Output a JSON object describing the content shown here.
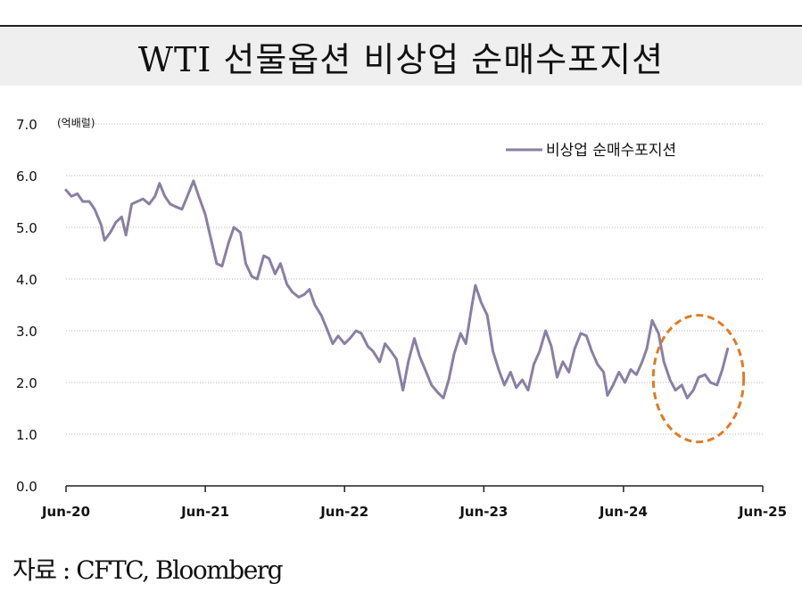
{
  "header": {
    "title": "WTI 선물옵션 비상업 순매수포지션"
  },
  "source": "자료 : CFTC, Bloomberg",
  "colors": {
    "series": "#8a7fa3",
    "highlight": "#e07b22",
    "grid": "#b5b5b5"
  },
  "chart_data": {
    "type": "line",
    "title": "WTI 선물옵션 비상업 순매수포지션",
    "ylabel": "",
    "unit_label": "(억배럴)",
    "ylim": [
      0,
      7
    ],
    "yticks": [
      "0.0",
      "1.0",
      "2.0",
      "3.0",
      "4.0",
      "5.0",
      "6.0",
      "7.0"
    ],
    "xlim": [
      "2020-06",
      "2025-06"
    ],
    "xticks": [
      "Jun-20",
      "Jun-21",
      "Jun-22",
      "Jun-23",
      "Jun-24",
      "Jun-25"
    ],
    "grid": true,
    "legend": "top-right",
    "series": [
      {
        "name": "비상업 순매수포지션",
        "points": [
          [
            "2020-06-01",
            5.72
          ],
          [
            "2020-06-15",
            5.6
          ],
          [
            "2020-07-01",
            5.65
          ],
          [
            "2020-07-15",
            5.5
          ],
          [
            "2020-08-01",
            5.5
          ],
          [
            "2020-08-15",
            5.35
          ],
          [
            "2020-09-01",
            5.05
          ],
          [
            "2020-09-10",
            4.75
          ],
          [
            "2020-09-25",
            4.9
          ],
          [
            "2020-10-10",
            5.1
          ],
          [
            "2020-10-25",
            5.2
          ],
          [
            "2020-11-05",
            4.85
          ],
          [
            "2020-11-20",
            5.45
          ],
          [
            "2020-12-05",
            5.5
          ],
          [
            "2020-12-20",
            5.55
          ],
          [
            "2021-01-05",
            5.45
          ],
          [
            "2021-01-20",
            5.6
          ],
          [
            "2021-02-01",
            5.85
          ],
          [
            "2021-02-15",
            5.6
          ],
          [
            "2021-03-01",
            5.45
          ],
          [
            "2021-03-15",
            5.4
          ],
          [
            "2021-04-01",
            5.35
          ],
          [
            "2021-04-15",
            5.6
          ],
          [
            "2021-05-01",
            5.9
          ],
          [
            "2021-05-15",
            5.6
          ],
          [
            "2021-06-01",
            5.25
          ],
          [
            "2021-06-15",
            4.8
          ],
          [
            "2021-07-01",
            4.3
          ],
          [
            "2021-07-15",
            4.25
          ],
          [
            "2021-08-01",
            4.7
          ],
          [
            "2021-08-15",
            5.0
          ],
          [
            "2021-09-01",
            4.9
          ],
          [
            "2021-09-15",
            4.3
          ],
          [
            "2021-10-01",
            4.05
          ],
          [
            "2021-10-15",
            4.0
          ],
          [
            "2021-11-01",
            4.45
          ],
          [
            "2021-11-15",
            4.4
          ],
          [
            "2021-12-01",
            4.1
          ],
          [
            "2021-12-15",
            4.3
          ],
          [
            "2022-01-01",
            3.9
          ],
          [
            "2022-01-15",
            3.75
          ],
          [
            "2022-02-01",
            3.65
          ],
          [
            "2022-02-15",
            3.7
          ],
          [
            "2022-03-01",
            3.8
          ],
          [
            "2022-03-15",
            3.5
          ],
          [
            "2022-04-01",
            3.3
          ],
          [
            "2022-04-15",
            3.05
          ],
          [
            "2022-05-01",
            2.75
          ],
          [
            "2022-05-15",
            2.9
          ],
          [
            "2022-06-01",
            2.75
          ],
          [
            "2022-06-15",
            2.85
          ],
          [
            "2022-07-01",
            3.0
          ],
          [
            "2022-07-15",
            2.95
          ],
          [
            "2022-08-01",
            2.7
          ],
          [
            "2022-08-15",
            2.6
          ],
          [
            "2022-09-01",
            2.4
          ],
          [
            "2022-09-15",
            2.75
          ],
          [
            "2022-10-01",
            2.6
          ],
          [
            "2022-10-15",
            2.45
          ],
          [
            "2022-11-01",
            1.85
          ],
          [
            "2022-11-15",
            2.4
          ],
          [
            "2022-12-01",
            2.85
          ],
          [
            "2022-12-15",
            2.5
          ],
          [
            "2023-01-01",
            2.2
          ],
          [
            "2023-01-15",
            1.95
          ],
          [
            "2023-02-01",
            1.8
          ],
          [
            "2023-02-15",
            1.7
          ],
          [
            "2023-03-01",
            2.05
          ],
          [
            "2023-03-15",
            2.55
          ],
          [
            "2023-04-01",
            2.95
          ],
          [
            "2023-04-15",
            2.75
          ],
          [
            "2023-05-01",
            3.5
          ],
          [
            "2023-05-10",
            3.88
          ],
          [
            "2023-05-25",
            3.55
          ],
          [
            "2023-06-10",
            3.3
          ],
          [
            "2023-06-25",
            2.6
          ],
          [
            "2023-07-10",
            2.25
          ],
          [
            "2023-07-25",
            1.95
          ],
          [
            "2023-08-10",
            2.2
          ],
          [
            "2023-08-25",
            1.9
          ],
          [
            "2023-09-10",
            2.05
          ],
          [
            "2023-09-25",
            1.85
          ],
          [
            "2023-10-10",
            2.35
          ],
          [
            "2023-10-25",
            2.6
          ],
          [
            "2023-11-10",
            3.0
          ],
          [
            "2023-11-25",
            2.7
          ],
          [
            "2023-12-10",
            2.1
          ],
          [
            "2023-12-25",
            2.4
          ],
          [
            "2024-01-10",
            2.2
          ],
          [
            "2024-01-25",
            2.65
          ],
          [
            "2024-02-10",
            2.95
          ],
          [
            "2024-02-25",
            2.9
          ],
          [
            "2024-03-10",
            2.6
          ],
          [
            "2024-03-25",
            2.35
          ],
          [
            "2024-04-10",
            2.2
          ],
          [
            "2024-04-20",
            1.75
          ],
          [
            "2024-05-05",
            1.95
          ],
          [
            "2024-05-20",
            2.2
          ],
          [
            "2024-06-05",
            2.0
          ],
          [
            "2024-06-20",
            2.25
          ],
          [
            "2024-07-05",
            2.15
          ],
          [
            "2024-07-20",
            2.4
          ],
          [
            "2024-08-01",
            2.65
          ],
          [
            "2024-08-15",
            3.2
          ],
          [
            "2024-09-01",
            2.95
          ],
          [
            "2024-09-15",
            2.4
          ],
          [
            "2024-10-01",
            2.05
          ],
          [
            "2024-10-15",
            1.85
          ],
          [
            "2024-11-01",
            1.95
          ],
          [
            "2024-11-15",
            1.7
          ],
          [
            "2024-12-01",
            1.85
          ],
          [
            "2024-12-15",
            2.1
          ],
          [
            "2025-01-01",
            2.15
          ],
          [
            "2025-01-15",
            2.0
          ],
          [
            "2025-02-01",
            1.95
          ],
          [
            "2025-02-15",
            2.25
          ],
          [
            "2025-03-01",
            2.65
          ]
        ]
      }
    ],
    "annotations": [
      {
        "type": "dashed-ellipse",
        "x_range": [
          "2024-09-01",
          "2025-03-01"
        ],
        "y_range": [
          0.85,
          3.3
        ]
      }
    ]
  }
}
